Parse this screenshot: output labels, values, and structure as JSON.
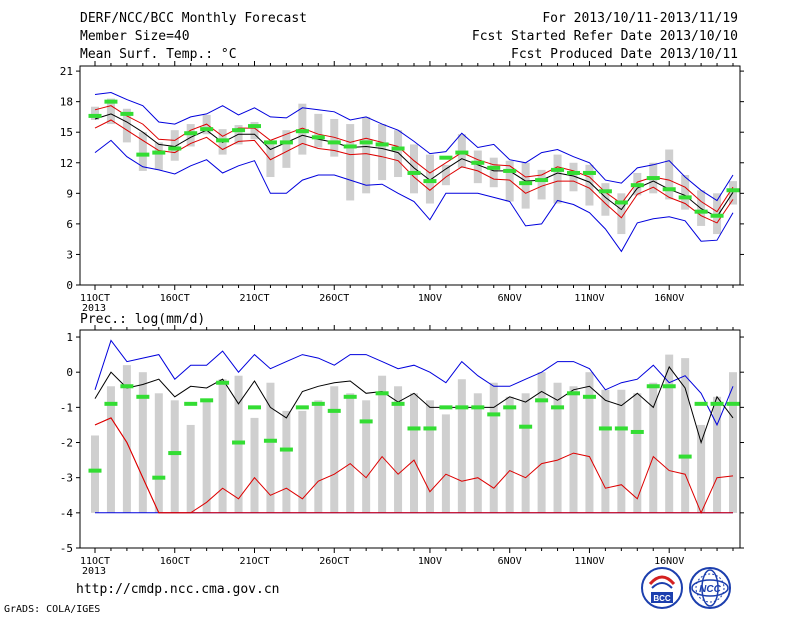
{
  "header": {
    "title": "DERF/NCC/BCC Monthly Forecast",
    "member_size": "Member Size=40",
    "variable": "Mean Surf. Temp.: °C",
    "period": "For 2013/10/11-2013/11/19",
    "fcst_started": "Fcst Started Refer Date 2013/10/10",
    "fcst_produced": "Fcst Produced Date 2013/10/11"
  },
  "footer": {
    "url": "http://cmdp.ncc.cma.gov.cn",
    "grads_credit": "GrADS: COLA/IGES",
    "logos": [
      "bcc-logo",
      "ncc-logo"
    ]
  },
  "colors": {
    "box": "#cfcfcf",
    "member_marker": "#33dd33",
    "mean_line": "#000000",
    "spread_line": "#dd0000",
    "extreme_line": "#0000dd"
  },
  "chart_data": [
    {
      "type": "line",
      "title": "Mean Surf. Temp.: °C",
      "x_tick_labels": [
        "11OCT",
        "16OCT",
        "21OCT",
        "26OCT",
        "1NOV",
        "6NOV",
        "11NOV",
        "16NOV"
      ],
      "x_tick_days": [
        0,
        5,
        10,
        15,
        21,
        26,
        31,
        36
      ],
      "x_year_label": "2013",
      "ylim": [
        0,
        21.5
      ],
      "yticks": [
        0,
        3,
        6,
        9,
        12,
        15,
        18,
        21
      ],
      "x_days": [
        0,
        1,
        2,
        3,
        4,
        5,
        6,
        7,
        8,
        9,
        10,
        11,
        12,
        13,
        14,
        15,
        16,
        17,
        18,
        19,
        20,
        21,
        22,
        23,
        24,
        25,
        26,
        27,
        28,
        29,
        30,
        31,
        32,
        33,
        34,
        35,
        36,
        37,
        38,
        39,
        40
      ],
      "series": [
        {
          "role": "box_top",
          "values": [
            17.5,
            18.3,
            17.3,
            15.0,
            14.0,
            15.2,
            15.8,
            16.7,
            15.3,
            15.7,
            16.0,
            13.8,
            15.2,
            17.8,
            16.8,
            16.3,
            15.8,
            16.5,
            15.8,
            15.2,
            13.8,
            12.8,
            11.8,
            14.8,
            13.2,
            12.5,
            12.2,
            12.0,
            11.3,
            12.8,
            12.0,
            11.8,
            10.0,
            9.0,
            11.0,
            12.0,
            13.3,
            10.8,
            9.3,
            9.0,
            10.2
          ]
        },
        {
          "role": "box_bottom",
          "values": [
            16.2,
            15.8,
            14.0,
            11.2,
            11.3,
            12.2,
            13.6,
            14.8,
            12.8,
            13.8,
            14.3,
            10.6,
            11.5,
            12.8,
            13.5,
            12.6,
            8.3,
            9.0,
            10.3,
            10.6,
            9.0,
            8.0,
            9.8,
            11.5,
            10.0,
            9.6,
            8.2,
            7.5,
            8.4,
            8.0,
            9.2,
            7.8,
            6.8,
            5.0,
            8.8,
            9.0,
            8.4,
            7.4,
            5.8,
            5.0,
            7.9
          ]
        },
        {
          "role": "member_marker",
          "values": [
            16.6,
            18.0,
            16.8,
            12.8,
            13.0,
            13.4,
            14.9,
            15.3,
            14.2,
            15.2,
            15.6,
            14.0,
            14.0,
            15.1,
            14.5,
            14.0,
            13.6,
            14.0,
            13.8,
            13.4,
            11.0,
            10.2,
            12.5,
            13.0,
            12.0,
            11.5,
            11.2,
            10.0,
            10.3,
            11.3,
            11.0,
            11.0,
            9.2,
            8.1,
            9.8,
            10.5,
            9.4,
            8.6,
            7.2,
            6.8,
            9.3
          ]
        },
        {
          "role": "extreme_max",
          "name": "max",
          "values": [
            18.7,
            18.9,
            18.2,
            17.6,
            16.0,
            15.8,
            16.5,
            16.8,
            17.6,
            16.7,
            17.4,
            16.5,
            16.4,
            17.4,
            17.2,
            17.0,
            16.2,
            16.5,
            15.8,
            15.2,
            14.1,
            12.9,
            13.1,
            14.9,
            13.5,
            13.8,
            12.3,
            12.0,
            13.0,
            13.3,
            12.6,
            12.0,
            10.3,
            10.0,
            11.5,
            11.8,
            12.2,
            10.6,
            9.3,
            8.3,
            10.8
          ]
        },
        {
          "role": "spread_upper",
          "name": "upper",
          "values": [
            17.2,
            17.6,
            16.6,
            15.8,
            14.3,
            14.2,
            15.2,
            15.8,
            14.6,
            15.4,
            15.4,
            14.2,
            14.8,
            15.4,
            14.8,
            14.5,
            14.0,
            14.4,
            14.0,
            13.6,
            12.2,
            11.0,
            12.0,
            13.0,
            12.3,
            11.8,
            11.7,
            10.6,
            10.8,
            11.6,
            11.2,
            10.6,
            9.1,
            8.0,
            10.1,
            10.6,
            10.3,
            9.6,
            8.2,
            7.2,
            9.6
          ]
        },
        {
          "role": "mean",
          "name": "mean",
          "values": [
            16.3,
            16.8,
            16.0,
            15.0,
            13.8,
            13.6,
            14.5,
            15.2,
            14.0,
            14.8,
            14.8,
            13.3,
            14.0,
            14.7,
            14.3,
            14.0,
            13.5,
            13.6,
            13.4,
            13.0,
            11.5,
            10.3,
            11.4,
            12.4,
            11.8,
            11.2,
            11.2,
            10.2,
            10.3,
            11.0,
            10.7,
            10.1,
            8.6,
            7.4,
            9.5,
            10.2,
            9.4,
            8.8,
            7.5,
            6.7,
            9.1
          ]
        },
        {
          "role": "spread_lower",
          "name": "lower",
          "values": [
            15.4,
            16.2,
            15.2,
            14.2,
            13.2,
            13.0,
            13.9,
            14.5,
            13.3,
            14.1,
            14.2,
            12.3,
            13.1,
            13.9,
            13.4,
            13.2,
            12.8,
            12.9,
            12.6,
            12.2,
            10.6,
            9.3,
            10.6,
            11.6,
            11.2,
            10.4,
            10.3,
            9.0,
            9.7,
            10.2,
            10.2,
            9.5,
            8.0,
            6.6,
            8.9,
            9.6,
            8.6,
            8.0,
            6.8,
            6.1,
            8.4
          ]
        },
        {
          "role": "extreme_min",
          "name": "min",
          "values": [
            13.0,
            14.2,
            12.6,
            11.6,
            11.3,
            10.9,
            11.7,
            12.3,
            11.0,
            11.7,
            12.2,
            9.0,
            9.0,
            10.3,
            10.8,
            10.8,
            10.3,
            9.8,
            9.9,
            9.0,
            8.2,
            6.4,
            9.0,
            9.0,
            9.0,
            8.6,
            8.2,
            5.8,
            6.0,
            8.3,
            7.9,
            7.1,
            5.5,
            3.3,
            6.1,
            6.5,
            6.7,
            6.3,
            4.3,
            4.4,
            7.1
          ]
        }
      ]
    },
    {
      "type": "line",
      "title": "Prec.: log(mm/d)",
      "x_tick_labels": [
        "11OCT",
        "16OCT",
        "21OCT",
        "26OCT",
        "1NOV",
        "6NOV",
        "11NOV",
        "16NOV"
      ],
      "x_tick_days": [
        0,
        5,
        10,
        15,
        21,
        26,
        31,
        36
      ],
      "x_year_label": "2013",
      "ylim": [
        -5,
        1.2
      ],
      "yticks": [
        -5,
        -4,
        -3,
        -2,
        -1,
        0,
        1
      ],
      "x_days": [
        0,
        1,
        2,
        3,
        4,
        5,
        6,
        7,
        8,
        9,
        10,
        11,
        12,
        13,
        14,
        15,
        16,
        17,
        18,
        19,
        20,
        21,
        22,
        23,
        24,
        25,
        26,
        27,
        28,
        29,
        30,
        31,
        32,
        33,
        34,
        35,
        36,
        37,
        38,
        39,
        40
      ],
      "series": [
        {
          "role": "box_top",
          "values": [
            -1.8,
            -0.4,
            0.2,
            0.0,
            -0.6,
            -0.8,
            -1.5,
            -0.8,
            -0.2,
            -0.1,
            -1.3,
            -0.3,
            -1.1,
            -1.1,
            -0.8,
            -0.4,
            -0.6,
            -0.8,
            -0.1,
            -0.4,
            -0.6,
            -0.8,
            -1.2,
            -0.2,
            -0.6,
            -0.3,
            -0.7,
            -0.6,
            0.0,
            -0.3,
            -0.4,
            0.0,
            -0.5,
            -0.5,
            -0.6,
            -0.3,
            0.5,
            0.4,
            -1.5,
            -0.7,
            0.0
          ]
        },
        {
          "role": "box_bottom",
          "values": [
            -4.0,
            -4.0,
            -4.0,
            -4.0,
            -4.0,
            -4.0,
            -4.0,
            -4.0,
            -4.0,
            -4.0,
            -4.0,
            -4.0,
            -4.0,
            -4.0,
            -4.0,
            -4.0,
            -4.0,
            -4.0,
            -4.0,
            -4.0,
            -4.0,
            -4.0,
            -4.0,
            -4.0,
            -4.0,
            -4.0,
            -4.0,
            -4.0,
            -4.0,
            -4.0,
            -4.0,
            -4.0,
            -4.0,
            -4.0,
            -4.0,
            -4.0,
            -4.0,
            -4.0,
            -4.0,
            -4.0,
            -4.0
          ]
        },
        {
          "role": "member_marker",
          "values": [
            -2.8,
            -0.9,
            -0.4,
            -0.7,
            -3.0,
            -2.3,
            -0.9,
            -0.8,
            -0.3,
            -2.0,
            -1.0,
            -1.95,
            -2.2,
            -1.0,
            -0.9,
            -1.1,
            -0.7,
            -1.4,
            -0.6,
            -0.9,
            -1.6,
            -1.6,
            -1.0,
            -1.0,
            -1.0,
            -1.2,
            -1.0,
            -1.55,
            -0.8,
            -1.0,
            -0.6,
            -0.7,
            -1.6,
            -1.6,
            -1.7,
            -0.4,
            -0.4,
            -2.4,
            -0.9,
            -0.9,
            -0.9
          ]
        },
        {
          "role": "extreme_max",
          "name": "max",
          "values": [
            -0.5,
            0.9,
            0.3,
            0.4,
            0.5,
            -0.2,
            0.2,
            0.2,
            0.6,
            0.0,
            0.5,
            0.1,
            0.3,
            0.5,
            0.4,
            0.2,
            0.5,
            0.5,
            0.3,
            0.1,
            0.2,
            0.0,
            -0.3,
            0.3,
            -0.1,
            -0.4,
            -0.4,
            -0.2,
            0.0,
            0.3,
            0.3,
            0.1,
            -0.5,
            -0.3,
            -0.2,
            0.2,
            -0.3,
            -0.1,
            -0.6,
            -1.5,
            -0.4
          ]
        },
        {
          "role": "spread_upper",
          "name": "upper",
          "values": [
            -1.5,
            -1.3,
            -2.0,
            -3.0,
            -4.0,
            -4.0,
            -4.0,
            -4.0,
            -4.0,
            -4.0,
            -4.0,
            -4.0,
            -4.0,
            -4.0,
            -4.0,
            -4.0,
            -4.0,
            -4.0,
            -4.0,
            -4.0,
            -4.0,
            -4.0,
            -4.0,
            -4.0,
            -4.0,
            -4.0,
            -4.0,
            -4.0,
            -4.0,
            -4.0,
            -4.0,
            -4.0,
            -4.0,
            -4.0,
            -4.0,
            -4.0,
            -4.0,
            -4.0,
            -4.0,
            -4.0,
            -4.0
          ]
        },
        {
          "role": "mean",
          "name": "mean",
          "values": [
            -0.75,
            0.0,
            -0.45,
            -0.35,
            -0.2,
            -0.7,
            -0.4,
            -0.45,
            -0.2,
            -0.9,
            -0.25,
            -1.0,
            -1.3,
            -0.55,
            -0.4,
            -0.3,
            -0.25,
            -0.6,
            -0.55,
            -0.85,
            -0.6,
            -1.0,
            -1.0,
            -1.0,
            -1.0,
            -1.0,
            -0.7,
            -0.85,
            -0.55,
            -0.8,
            -0.5,
            -0.4,
            -0.8,
            -0.95,
            -0.6,
            -1.0,
            0.15,
            -0.45,
            -2.0,
            -0.7,
            -1.3
          ]
        },
        {
          "role": "spread_lower",
          "name": "lower",
          "values": [
            -1.5,
            -1.3,
            -2.0,
            -3.0,
            -4.0,
            -4.0,
            -4.0,
            -3.7,
            -3.3,
            -3.6,
            -3.0,
            -3.5,
            -3.3,
            -3.6,
            -3.1,
            -2.9,
            -2.6,
            -3.0,
            -2.4,
            -2.9,
            -2.5,
            -3.4,
            -2.9,
            -3.1,
            -3.0,
            -3.3,
            -2.8,
            -3.0,
            -2.6,
            -2.5,
            -2.3,
            -2.4,
            -3.3,
            -3.2,
            -3.6,
            -2.4,
            -2.8,
            -2.9,
            -4.0,
            -3.0,
            -2.95
          ]
        },
        {
          "role": "extreme_min",
          "name": "min",
          "values": [
            -4.0,
            -4.0,
            -4.0,
            -4.0,
            -4.0,
            -4.0,
            -4.0,
            -4.0,
            -4.0,
            -4.0,
            -4.0,
            -4.0,
            -4.0,
            -4.0,
            -4.0,
            -4.0,
            -4.0,
            -4.0,
            -4.0,
            -4.0,
            -4.0,
            -4.0,
            -4.0,
            -4.0,
            -4.0,
            -4.0,
            -4.0,
            -4.0,
            -4.0,
            -4.0,
            -4.0,
            -4.0,
            -4.0,
            -4.0,
            -4.0,
            -4.0,
            -4.0,
            -4.0,
            -4.0,
            -4.0,
            -4.0
          ]
        }
      ]
    }
  ]
}
